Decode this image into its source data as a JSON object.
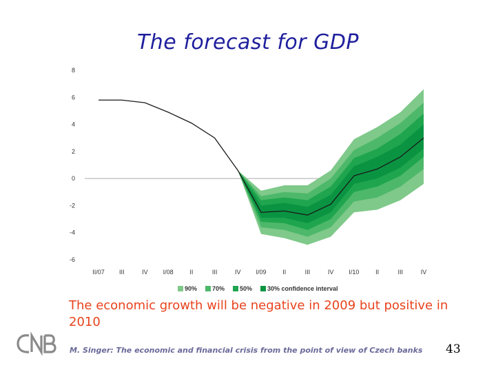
{
  "slide": {
    "title": "The forecast for GDP",
    "caption": "The economic growth will be negative in 2009 but positive in 2010",
    "footer": "M. Singer: The economic and financial crisis from the point of view of Czech banks",
    "page_number": "43",
    "logo_text": "CNB"
  },
  "colors": {
    "title": "#1f1f9e",
    "caption": "#e8431c",
    "band_90": "#7fc98a",
    "band_70": "#4db86a",
    "band_50": "#1fa54e",
    "band_30": "#0a9442",
    "line": "#1a1a1a",
    "zero_line": "#aaaaaa"
  },
  "chart_data": {
    "type": "area",
    "title": "",
    "xlabel": "",
    "ylabel": "",
    "categories": [
      "II/07",
      "III",
      "IV",
      "I/08",
      "II",
      "III",
      "IV",
      "I/09",
      "II",
      "III",
      "IV",
      "I/10",
      "II",
      "III",
      "IV"
    ],
    "ylim": [
      -6,
      8
    ],
    "yticks": [
      8,
      6,
      4,
      2,
      0,
      -2,
      -4,
      -6
    ],
    "legend": [
      "90%",
      "70%",
      "50%",
      "30% confidence interval"
    ],
    "legend_position": "bottom",
    "central": [
      5.8,
      5.8,
      5.6,
      4.9,
      4.1,
      3.0,
      0.6,
      -2.5,
      -2.4,
      -2.7,
      -1.9,
      0.2,
      0.7,
      1.6,
      3.0
    ],
    "fan_start_index": 6,
    "bands": [
      {
        "name": "90%",
        "upper": [
          0.6,
          -0.9,
          -0.5,
          -0.5,
          0.6,
          2.9,
          3.8,
          4.9,
          6.6
        ],
        "lower": [
          0.6,
          -4.1,
          -4.4,
          -4.9,
          -4.3,
          -2.5,
          -2.3,
          -1.6,
          -0.4
        ]
      },
      {
        "name": "70%",
        "upper": [
          0.6,
          -1.3,
          -1.0,
          -1.1,
          0.0,
          2.1,
          3.0,
          4.1,
          5.6
        ],
        "lower": [
          0.6,
          -3.6,
          -3.8,
          -4.3,
          -3.6,
          -1.7,
          -1.4,
          -0.6,
          0.7
        ]
      },
      {
        "name": "50%",
        "upper": [
          0.6,
          -1.6,
          -1.4,
          -1.6,
          -0.6,
          1.5,
          2.2,
          3.3,
          4.8
        ],
        "lower": [
          0.6,
          -3.2,
          -3.3,
          -3.8,
          -3.0,
          -1.0,
          -0.6,
          0.2,
          1.6
        ]
      },
      {
        "name": "30% confidence interval",
        "upper": [
          0.6,
          -2.0,
          -1.8,
          -2.1,
          -1.2,
          0.9,
          1.6,
          2.5,
          4.0
        ],
        "lower": [
          0.6,
          -2.9,
          -2.9,
          -3.3,
          -2.5,
          -0.4,
          0.0,
          0.8,
          2.2
        ]
      }
    ]
  }
}
